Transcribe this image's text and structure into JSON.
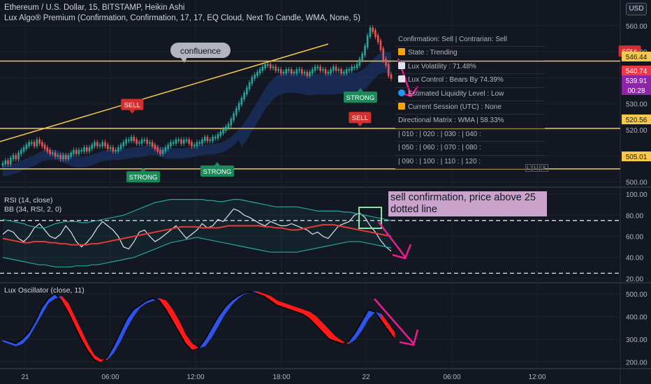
{
  "header": {
    "title": "Ethereum / U.S. Dollar, 15, BITSTAMP, Heikin Ashi",
    "indicator": "Lux Algo® Premium (Confirmation, Confirmation, 17, 17, EQ Cloud, Next To Candle, WMA, None, 5)",
    "currency_button": "USD"
  },
  "annotations": {
    "confluence": "confluence",
    "sell_labels": [
      "SELL",
      "SELL",
      "SELL",
      "SELL"
    ],
    "strong_labels": [
      "STRONG",
      "STRONG",
      "STRONG"
    ],
    "note": "sell confirmation, price above 25 dotted line"
  },
  "dashboard": {
    "rows": [
      "Confirmation: Sell | Contrarian: Sell",
      "State : Trending",
      "Lux Volatility : 71.48%",
      "Lux Control : Bears By 74.39%",
      "Estimated Liquidity Level : Low",
      "Current Session (UTC) : None",
      "Directional Matrix : WMA | 58.33%",
      "| 010 : | 020 : | 030 : | 040 :",
      "| 050 : | 060 : | 070 : | 080 :",
      "| 090 : | 100 : | 110 : | 120 :"
    ],
    "icon_colors": [
      "#f7a600",
      "#f7a600",
      "#e0e3eb",
      "#e0e3eb",
      "#2196f3",
      "#f7a600"
    ],
    "lux_letters": [
      "L",
      "U",
      "X"
    ]
  },
  "panes": {
    "rsi_label": "RSI (14, close)",
    "bb_label": "BB (34, RSI, 2, 0)",
    "osc_label": "Lux Oscillator (close, 11)"
  },
  "chart_data": [
    {
      "type": "candlestick",
      "title": "Ethereum / U.S. Dollar, 15, BITSTAMP, Heikin Ashi",
      "x_ticks": [
        "21",
        "06:00",
        "12:00",
        "18:00",
        "22",
        "06:00",
        "12:00"
      ],
      "y_ticks": [
        500,
        510,
        520,
        530,
        540,
        550,
        560
      ],
      "ylim": [
        498,
        564
      ],
      "horizontal_levels": [
        546.44,
        520.56,
        505.01
      ],
      "price_labels": [
        {
          "text": "546.44",
          "color": "#f7c948"
        },
        {
          "text": "540.74",
          "color": "#f23645"
        },
        {
          "text": "539.91",
          "color": "#8e24aa"
        },
        {
          "text": "00:28",
          "color": "#8e24aa"
        },
        {
          "text": "520.56",
          "color": "#f7c948"
        },
        {
          "text": "505.01",
          "color": "#f7c948"
        }
      ],
      "trendline": {
        "from": [
          0,
          515.5
        ],
        "to": [
          64,
          553.0
        ]
      },
      "close_series": [
        507,
        508,
        507,
        509,
        510,
        509,
        511,
        512,
        513,
        514,
        515,
        515,
        514,
        516,
        515,
        514,
        513,
        512,
        511,
        511,
        510,
        510,
        509,
        510,
        509,
        510,
        511,
        512,
        511,
        512,
        512,
        513,
        512,
        513,
        514,
        515,
        514,
        514,
        515,
        514,
        513,
        513,
        512,
        512,
        513,
        514,
        515,
        516,
        516,
        517,
        516,
        515,
        515,
        516,
        516,
        515,
        515,
        514,
        513,
        512,
        511,
        512,
        513,
        514,
        515,
        515,
        516,
        516,
        515,
        516,
        516,
        515,
        514,
        514,
        515,
        515,
        516,
        517,
        516,
        516,
        517,
        517,
        518,
        519,
        520,
        521,
        522,
        524,
        526,
        528,
        530,
        532,
        534,
        536,
        538,
        540,
        541,
        542,
        543,
        544,
        545,
        545,
        544,
        544,
        543,
        543,
        542,
        542,
        543,
        543,
        542,
        542,
        543,
        543,
        542,
        542,
        541,
        542,
        543,
        544,
        544,
        543,
        543,
        542,
        542,
        543,
        544,
        543,
        543,
        542,
        542,
        543,
        543,
        544,
        544,
        545,
        547,
        549,
        552,
        556,
        559,
        558,
        556,
        554,
        551,
        547,
        545,
        541,
        540
      ],
      "sells": [
        {
          "x": 44,
          "price": 529.5
        },
        {
          "x": 130,
          "price": 524.5
        },
        {
          "x": 232,
          "price": 550.0
        },
        {
          "x": 279,
          "price": 558.7
        }
      ],
      "strongs": [
        {
          "x": 100,
          "price": 501.7
        },
        {
          "x": 154,
          "price": 503.9
        },
        {
          "x": 257,
          "price": 532.3
        }
      ]
    },
    {
      "type": "line",
      "name": "RSI (14, close)",
      "y_ticks": [
        20,
        40,
        60,
        80,
        100
      ],
      "ylim": [
        16,
        104
      ],
      "dotted_levels": [
        75,
        25
      ],
      "series": [
        {
          "name": "RSI",
          "color": "#e0e3eb",
          "values": [
            62,
            66,
            64,
            58,
            55,
            60,
            68,
            72,
            66,
            60,
            58,
            62,
            70,
            64,
            55,
            50,
            54,
            60,
            68,
            74,
            70,
            66,
            60,
            50,
            48,
            55,
            64,
            66,
            60,
            55,
            58,
            62,
            66,
            70,
            64,
            58,
            62,
            66,
            72,
            68,
            70,
            76,
            74,
            80,
            86,
            84,
            80,
            78,
            75,
            72,
            70,
            74,
            72,
            70,
            70,
            72,
            70,
            68,
            66,
            62,
            64,
            60,
            58,
            64,
            70,
            72,
            74,
            80,
            82,
            78,
            70,
            64,
            56,
            50,
            46
          ]
        },
        {
          "name": "BB basis",
          "color": "#e53935",
          "values": [
            58,
            57,
            56,
            55,
            54,
            54,
            55,
            55,
            55,
            54,
            54,
            53,
            53,
            52,
            52,
            52,
            52,
            53,
            53,
            54,
            55,
            56,
            57,
            58,
            59,
            60,
            61,
            62,
            63,
            64,
            65,
            66,
            67,
            68,
            69,
            69,
            69,
            69,
            68,
            68,
            68,
            68,
            69,
            70,
            70,
            70,
            70,
            70,
            70,
            70,
            69,
            69,
            68,
            68,
            67,
            66,
            66,
            67,
            68,
            69,
            70,
            71,
            71,
            71,
            70,
            69,
            68,
            67,
            66,
            65,
            64,
            63,
            62,
            61,
            60
          ]
        },
        {
          "name": "BB upper",
          "color": "#26a69a",
          "values": [
            76,
            75,
            74,
            73,
            72,
            70,
            69,
            68,
            68,
            70,
            72,
            73,
            74,
            74,
            74,
            73,
            73,
            74,
            75,
            76,
            77,
            78,
            79,
            80,
            82,
            84,
            86,
            88,
            90,
            92,
            93,
            94,
            95,
            95,
            95,
            95,
            95,
            95,
            95,
            94,
            94,
            93,
            93,
            94,
            95,
            95,
            94,
            93,
            92,
            91,
            90,
            89,
            88,
            88,
            88,
            88,
            88,
            87,
            86,
            85,
            84,
            84,
            84,
            84,
            84,
            83,
            83,
            82,
            81,
            80,
            79,
            78,
            77,
            76,
            75
          ]
        },
        {
          "name": "BB lower",
          "color": "#26a69a",
          "values": [
            40,
            39,
            38,
            37,
            36,
            35,
            34,
            33,
            33,
            32,
            31,
            31,
            31,
            31,
            32,
            32,
            32,
            33,
            33,
            34,
            35,
            36,
            37,
            38,
            39,
            40,
            42,
            44,
            46,
            48,
            50,
            52,
            54,
            55,
            56,
            57,
            58,
            59,
            58,
            57,
            56,
            55,
            54,
            53,
            52,
            51,
            50,
            49,
            48,
            47,
            46,
            45,
            45,
            45,
            45,
            45,
            45,
            46,
            47,
            48,
            49,
            50,
            51,
            52,
            53,
            54,
            55,
            55,
            55,
            54,
            53,
            52,
            51,
            50,
            49
          ]
        }
      ]
    },
    {
      "type": "area",
      "name": "Lux Oscillator (close, 11)",
      "y_ticks": [
        200,
        300,
        400,
        500
      ],
      "ylim": [
        170,
        540
      ],
      "series": [
        {
          "name": "fast",
          "values": [
            300,
            290,
            280,
            300,
            330,
            380,
            440,
            480,
            500,
            470,
            420,
            360,
            300,
            250,
            210,
            195,
            220,
            270,
            330,
            390,
            430,
            450,
            470,
            480,
            470,
            430,
            380,
            330,
            280,
            250,
            260,
            300,
            350,
            400,
            440,
            470,
            490,
            505,
            510,
            500,
            490,
            470,
            450,
            440,
            430,
            420,
            410,
            390,
            360,
            330,
            300,
            290,
            280,
            290,
            330,
            380,
            430,
            420,
            380,
            340,
            300
          ]
        },
        {
          "name": "slow",
          "values": [
            290,
            280,
            270,
            280,
            310,
            360,
            410,
            460,
            480,
            490,
            460,
            400,
            340,
            280,
            230,
            210,
            210,
            240,
            290,
            350,
            400,
            440,
            460,
            470,
            480,
            470,
            430,
            380,
            320,
            280,
            260,
            270,
            310,
            360,
            410,
            450,
            480,
            500,
            510,
            510,
            500,
            490,
            470,
            460,
            450,
            440,
            430,
            420,
            400,
            370,
            340,
            310,
            290,
            280,
            300,
            340,
            390,
            420,
            410,
            370,
            330
          ]
        }
      ]
    }
  ]
}
